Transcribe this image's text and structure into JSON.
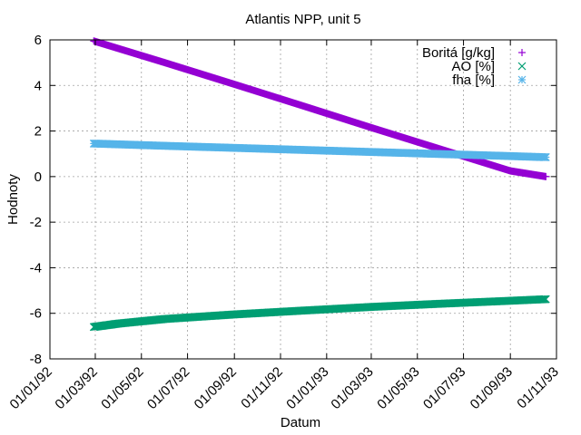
{
  "chart_data": {
    "type": "scatter",
    "title": "Atlantis NPP, unit 5",
    "xlabel": "Datum",
    "ylabel": "Hodnoty",
    "xlim": [
      "1992-01-01",
      "1993-11-01"
    ],
    "ylim": [
      -8,
      6
    ],
    "x_ticks": [
      "01/01/92",
      "01/03/92",
      "01/05/92",
      "01/07/92",
      "01/09/92",
      "01/11/92",
      "01/01/93",
      "01/03/93",
      "01/05/93",
      "01/07/93",
      "01/09/93",
      "01/11/93"
    ],
    "y_ticks": [
      6,
      4,
      2,
      0,
      -2,
      -4,
      -6,
      -8
    ],
    "grid": true,
    "legend_position": "top-right",
    "x_start": "1992-02-28",
    "x_end": "1993-10-18",
    "series": [
      {
        "name": "Boritá [g/kg]",
        "color": "#9400d3",
        "marker": "plus",
        "x": [
          "1992-02-28",
          "1992-06-01",
          "1992-09-01",
          "1992-12-01",
          "1993-03-01",
          "1993-06-01",
          "1993-09-01",
          "1993-10-18"
        ],
        "y": [
          5.95,
          5.0,
          4.05,
          3.1,
          2.15,
          1.2,
          0.25,
          0.0
        ]
      },
      {
        "name": "AO [%]",
        "color": "#009e73",
        "marker": "cross",
        "x": [
          "1992-02-28",
          "1992-04-01",
          "1992-06-01",
          "1992-09-01",
          "1992-12-01",
          "1993-03-01",
          "1993-06-01",
          "1993-09-01",
          "1993-10-18"
        ],
        "y": [
          -6.6,
          -6.45,
          -6.25,
          -6.05,
          -5.88,
          -5.72,
          -5.58,
          -5.45,
          -5.38
        ]
      },
      {
        "name": "fha [%]",
        "color": "#56b4e9",
        "marker": "star",
        "x": [
          "1992-02-28",
          "1992-06-01",
          "1992-09-01",
          "1992-12-01",
          "1993-03-01",
          "1993-06-01",
          "1993-09-01",
          "1993-10-18"
        ],
        "y": [
          1.45,
          1.35,
          1.26,
          1.17,
          1.08,
          0.99,
          0.9,
          0.85
        ]
      }
    ]
  }
}
